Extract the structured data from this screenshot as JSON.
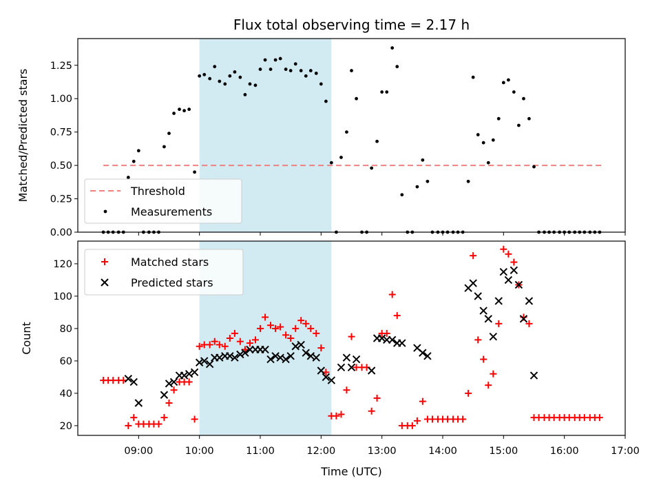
{
  "chart_data": [
    {
      "type": "scatter",
      "title": "Flux total observing time = 2.17 h",
      "ylabel": "Matched/Predicted stars",
      "xlabel": "",
      "xlim": [
        8.0,
        17.0
      ],
      "ylim": [
        0.0,
        1.45
      ],
      "yticks": [
        0.0,
        0.25,
        0.5,
        0.75,
        1.0,
        1.25
      ],
      "ytick_labels": [
        "0.00",
        "0.25",
        "0.50",
        "0.75",
        "1.00",
        "1.25"
      ],
      "shaded_span": [
        10.0,
        12.17
      ],
      "legend": {
        "placement": "lower-left",
        "entries": [
          "Threshold",
          "Measurements"
        ]
      },
      "threshold": {
        "name": "Threshold",
        "value": 0.5,
        "x_range": [
          8.42,
          16.62
        ],
        "color": "#f08080"
      },
      "series": [
        {
          "name": "Measurements",
          "color": "#000000",
          "x": [
            8.42,
            8.5,
            8.58,
            8.67,
            8.75,
            8.83,
            8.92,
            9.0,
            9.08,
            9.17,
            9.25,
            9.33,
            9.42,
            9.5,
            9.58,
            9.67,
            9.75,
            9.83,
            9.92,
            10.0,
            10.08,
            10.17,
            10.25,
            10.33,
            10.42,
            10.5,
            10.58,
            10.67,
            10.75,
            10.83,
            10.92,
            11.0,
            11.08,
            11.17,
            11.25,
            11.33,
            11.42,
            11.5,
            11.58,
            11.67,
            11.75,
            11.83,
            11.92,
            12.0,
            12.08,
            12.17,
            12.25,
            12.33,
            12.42,
            12.5,
            12.58,
            12.67,
            12.75,
            12.83,
            12.92,
            13.0,
            13.08,
            13.17,
            13.25,
            13.33,
            13.42,
            13.5,
            13.58,
            13.67,
            13.75,
            13.83,
            13.92,
            14.0,
            14.08,
            14.17,
            14.25,
            14.33,
            14.42,
            14.5,
            14.58,
            14.67,
            14.75,
            14.83,
            14.92,
            15.0,
            15.08,
            15.17,
            15.25,
            15.33,
            15.42,
            15.5,
            15.58,
            15.67,
            15.75,
            15.83,
            15.92,
            16.0,
            16.08,
            16.17,
            16.25,
            16.33,
            16.42,
            16.5,
            16.58
          ],
          "y": [
            0.0,
            0.0,
            0.0,
            0.0,
            0.0,
            0.41,
            0.53,
            0.61,
            0.0,
            0.0,
            0.0,
            0.0,
            0.64,
            0.74,
            0.89,
            0.92,
            0.91,
            0.92,
            0.45,
            1.17,
            1.18,
            1.15,
            1.24,
            1.13,
            1.11,
            1.17,
            1.2,
            1.16,
            1.03,
            1.11,
            1.1,
            1.22,
            1.29,
            1.22,
            1.29,
            1.3,
            1.22,
            1.21,
            1.26,
            1.21,
            1.17,
            1.21,
            1.19,
            1.11,
            0.98,
            0.52,
            0.0,
            0.56,
            0.75,
            1.21,
            1.0,
            0.0,
            0.0,
            0.48,
            0.68,
            1.05,
            1.05,
            1.38,
            1.24,
            0.28,
            0.0,
            0.0,
            0.34,
            0.54,
            0.38,
            0.0,
            0.0,
            0.0,
            0.0,
            0.0,
            0.0,
            0.0,
            0.38,
            1.16,
            0.73,
            0.67,
            0.52,
            0.69,
            0.85,
            1.12,
            1.14,
            1.05,
            0.8,
            1.0,
            0.85,
            0.49,
            0.0,
            0.0,
            0.0,
            0.0,
            0.0,
            0.0,
            0.0,
            0.0,
            0.0,
            0.0,
            0.0,
            0.0,
            0.0
          ]
        }
      ]
    },
    {
      "type": "scatter",
      "title": "",
      "ylabel": "Count",
      "xlabel": "Time (UTC)",
      "xlim": [
        8.0,
        17.0
      ],
      "ylim": [
        14.0,
        134.0
      ],
      "yticks": [
        20,
        40,
        60,
        80,
        100,
        120
      ],
      "ytick_labels": [
        "20",
        "40",
        "60",
        "80",
        "100",
        "120"
      ],
      "xticks": [
        9,
        10,
        11,
        12,
        13,
        14,
        15,
        16,
        17
      ],
      "xtick_labels": [
        "09:00",
        "10:00",
        "11:00",
        "12:00",
        "13:00",
        "14:00",
        "15:00",
        "16:00",
        "17:00"
      ],
      "shaded_span": [
        10.0,
        12.17
      ],
      "legend": {
        "placement": "upper-left",
        "entries": [
          "Matched stars",
          "Predicted stars"
        ]
      },
      "series": [
        {
          "name": "Matched stars",
          "marker": "+",
          "color": "#ff0000",
          "x": [
            8.42,
            8.5,
            8.58,
            8.67,
            8.75,
            8.83,
            8.92,
            9.0,
            9.08,
            9.17,
            9.25,
            9.33,
            9.42,
            9.5,
            9.58,
            9.67,
            9.75,
            9.83,
            9.92,
            10.0,
            10.08,
            10.17,
            10.25,
            10.33,
            10.42,
            10.5,
            10.58,
            10.67,
            10.75,
            10.83,
            10.92,
            11.0,
            11.08,
            11.17,
            11.25,
            11.33,
            11.42,
            11.5,
            11.58,
            11.67,
            11.75,
            11.83,
            11.92,
            12.0,
            12.08,
            12.17,
            12.25,
            12.33,
            12.42,
            12.5,
            12.58,
            12.67,
            12.75,
            12.83,
            12.92,
            13.0,
            13.08,
            13.17,
            13.25,
            13.33,
            13.42,
            13.5,
            13.58,
            13.67,
            13.75,
            13.83,
            13.92,
            14.0,
            14.08,
            14.17,
            14.25,
            14.33,
            14.42,
            14.5,
            14.58,
            14.67,
            14.75,
            14.83,
            14.92,
            15.0,
            15.08,
            15.17,
            15.25,
            15.33,
            15.42,
            15.5,
            15.58,
            15.67,
            15.75,
            15.83,
            15.92,
            16.0,
            16.08,
            16.17,
            16.25,
            16.33,
            16.42,
            16.5,
            16.58
          ],
          "y": [
            48,
            48,
            48,
            48,
            48,
            20,
            25,
            21,
            21,
            21,
            21,
            21,
            25,
            34,
            42,
            47,
            47,
            47,
            24,
            69,
            70,
            70,
            72,
            70,
            69,
            74,
            77,
            72,
            67,
            71,
            73,
            80,
            87,
            82,
            80,
            81,
            76,
            74,
            80,
            85,
            83,
            80,
            77,
            68,
            53,
            26,
            26,
            27,
            42,
            75,
            56,
            56,
            56,
            29,
            37,
            77,
            77,
            101,
            88,
            20,
            20,
            20,
            23,
            35,
            24,
            24,
            24,
            24,
            24,
            24,
            24,
            24,
            40,
            125,
            73,
            61,
            45,
            52,
            83,
            129,
            126,
            121,
            107,
            87,
            83,
            25,
            25,
            25,
            25,
            25,
            25,
            25,
            25,
            25,
            25,
            25,
            25,
            25,
            25
          ]
        },
        {
          "name": "Predicted stars",
          "marker": "x",
          "color": "#000000",
          "x": [
            8.83,
            8.92,
            9.0,
            9.42,
            9.5,
            9.58,
            9.67,
            9.75,
            9.83,
            9.92,
            10.0,
            10.08,
            10.17,
            10.25,
            10.33,
            10.42,
            10.5,
            10.58,
            10.67,
            10.75,
            10.83,
            10.92,
            11.0,
            11.08,
            11.17,
            11.25,
            11.33,
            11.42,
            11.5,
            11.58,
            11.67,
            11.75,
            11.83,
            11.92,
            12.0,
            12.08,
            12.17,
            12.33,
            12.42,
            12.5,
            12.58,
            12.83,
            12.92,
            13.0,
            13.08,
            13.17,
            13.25,
            13.33,
            13.58,
            13.67,
            13.75,
            14.42,
            14.5,
            14.58,
            14.67,
            14.75,
            14.83,
            14.92,
            15.0,
            15.08,
            15.17,
            15.25,
            15.33,
            15.42,
            15.5
          ],
          "y": [
            49,
            47,
            34,
            39,
            46,
            47,
            51,
            51,
            52,
            53,
            59,
            60,
            58,
            62,
            62,
            63,
            63,
            62,
            64,
            65,
            67,
            67,
            67,
            67,
            61,
            63,
            62,
            61,
            63,
            69,
            70,
            65,
            63,
            62,
            54,
            50,
            48,
            56,
            62,
            56,
            61,
            54,
            74,
            74,
            73,
            73,
            71,
            71,
            68,
            65,
            63,
            105,
            108,
            100,
            91,
            86,
            75,
            97,
            115,
            110,
            116,
            107,
            86,
            97,
            51
          ]
        }
      ]
    }
  ]
}
